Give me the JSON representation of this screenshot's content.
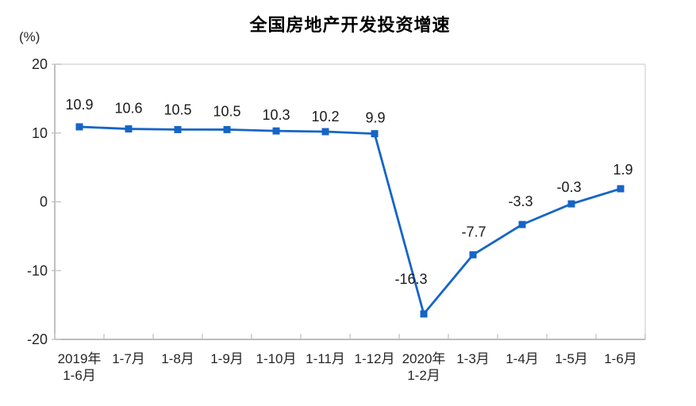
{
  "chart_data": {
    "type": "line",
    "title": "全国房地产开发投资增速",
    "ylabel": "(%)",
    "categories": [
      "2019年\n1-6月",
      "1-7月",
      "1-8月",
      "1-9月",
      "1-10月",
      "1-11月",
      "1-12月",
      "2020年\n1-2月",
      "1-3月",
      "1-4月",
      "1-5月",
      "1-6月"
    ],
    "values": [
      10.9,
      10.6,
      10.5,
      10.5,
      10.3,
      10.2,
      9.9,
      -16.3,
      -7.7,
      -3.3,
      -0.3,
      1.9
    ],
    "data_labels": [
      "10.9",
      "10.6",
      "10.5",
      "10.5",
      "10.3",
      "10.2",
      "9.9",
      "-16.3",
      "-7.7",
      "-3.3",
      "-0.3",
      "1.9"
    ],
    "ylim": [
      -20,
      20
    ],
    "yticks": [
      20,
      10,
      0,
      -10,
      -20
    ],
    "ytick_labels": [
      "20",
      "10",
      "0",
      "-10",
      "-20"
    ],
    "grid": false,
    "legend": false,
    "marker": "square",
    "colors": {
      "line": "#1565C6",
      "data_label_text": "#1A1A1A",
      "axis": "#A6A6A6",
      "tick": "#BFBFBF",
      "plot_border": "#D9D9D9",
      "axis_text": "#262626",
      "title_text": "#000000"
    }
  }
}
